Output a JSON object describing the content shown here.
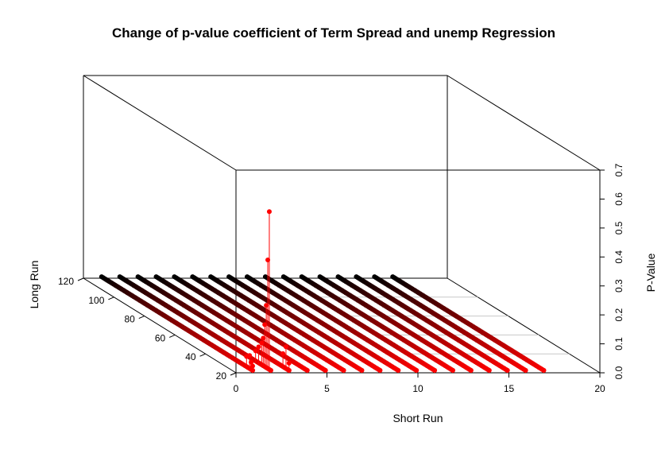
{
  "chart_data": {
    "type": "scatter3d",
    "title": "Change of p-value coefficient of Term Spread and unemp Regression",
    "xlabel": "Short Run",
    "ylabel": "Long Run",
    "zlabel": "P-Value",
    "xlim": [
      0,
      20
    ],
    "ylim": [
      20,
      120
    ],
    "zlim": [
      0,
      0.7
    ],
    "x_ticks": [
      "0",
      "5",
      "10",
      "15",
      "20"
    ],
    "y_ticks": [
      "20",
      "40",
      "60",
      "80",
      "100",
      "120"
    ],
    "z_ticks": [
      "0.0",
      "0.1",
      "0.2",
      "0.3",
      "0.4",
      "0.5",
      "0.6",
      "0.7"
    ],
    "short_run_values": [
      1,
      2,
      3,
      4,
      5,
      6,
      7,
      8,
      9,
      10,
      11,
      12,
      13,
      14,
      15,
      16,
      17
    ],
    "long_run_range": [
      20,
      120
    ],
    "point_color_low": "#ff0000",
    "point_color_high": "#000000",
    "spikes": [
      {
        "x": 1,
        "y": 21,
        "z": 0.02
      },
      {
        "x": 1,
        "y": 22,
        "z": 0.03
      },
      {
        "x": 1,
        "y": 23,
        "z": 0.05
      },
      {
        "x": 1,
        "y": 25,
        "z": 0.04
      },
      {
        "x": 2,
        "y": 22,
        "z": 0.55
      },
      {
        "x": 2,
        "y": 23,
        "z": 0.38
      },
      {
        "x": 2,
        "y": 24,
        "z": 0.22
      },
      {
        "x": 2,
        "y": 25,
        "z": 0.15
      },
      {
        "x": 2,
        "y": 26,
        "z": 0.1
      },
      {
        "x": 2,
        "y": 27,
        "z": 0.08
      },
      {
        "x": 2,
        "y": 29,
        "z": 0.06
      },
      {
        "x": 2,
        "y": 31,
        "z": 0.04
      },
      {
        "x": 3,
        "y": 21,
        "z": 0.03
      },
      {
        "x": 3,
        "y": 23,
        "z": 0.08
      },
      {
        "x": 3,
        "y": 25,
        "z": 0.05
      }
    ],
    "background_p": 0.005,
    "grid": true
  }
}
